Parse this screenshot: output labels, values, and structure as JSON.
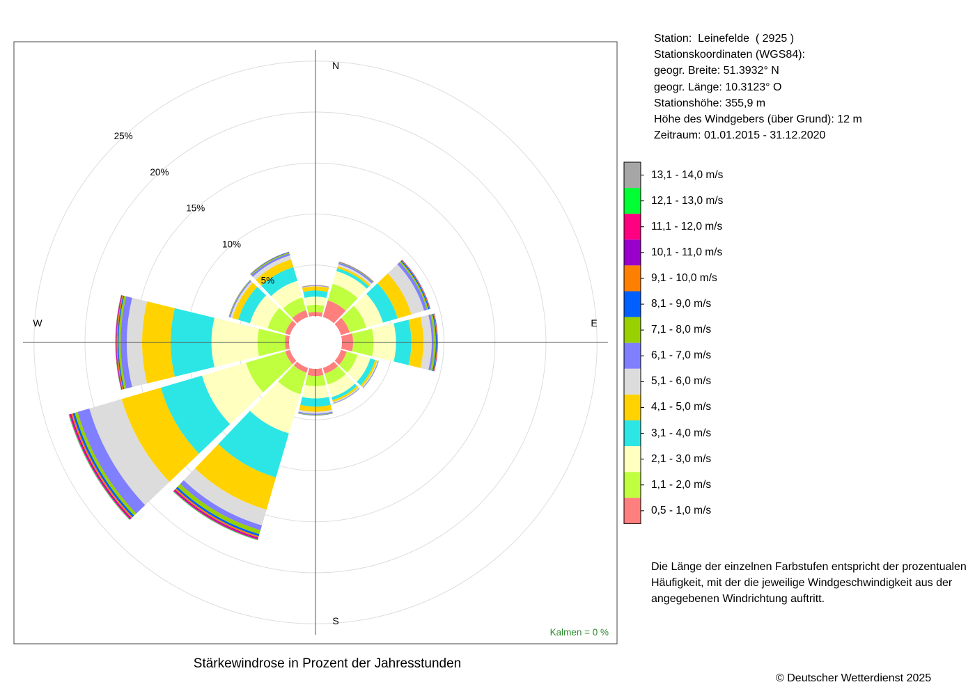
{
  "station_info": {
    "station": "Station:  Leinefelde  ( 2925 )",
    "coords_header": "Stationskoordinaten (WGS84):",
    "lat": "geogr. Breite: 51.3932° N",
    "lon": "geogr. Länge: 10.3123° O",
    "elevation": "Stationshöhe: 355,9 m",
    "sensor_height": "Höhe des Windgebers (über Grund): 12 m",
    "period": "Zeitraum: 01.01.2015 - 31.12.2020"
  },
  "legend_note": "Die Länge der einzelnen Farbstufen entspricht der prozentualen Häufigkeit, mit der die jeweilige Windgeschwindigkeit aus der angegebenen Windrichtung auftritt.",
  "footer_title": "Stärkewindrose in Prozent der Jahresstunden",
  "copyright": "© Deutscher Wetterdienst  2025",
  "chart_data": {
    "type": "polar-stacked-bar",
    "title": "Stärkewindrose in Prozent der Jahresstunden",
    "calm_label": "Kalmen  =  0 %",
    "direction_labels": {
      "N": "N",
      "E": "E",
      "S": "S",
      "W": "W"
    },
    "radial_ticks": [
      {
        "value": 5,
        "label": "5%"
      },
      {
        "value": 10,
        "label": "10%"
      },
      {
        "value": 15,
        "label": "15%"
      },
      {
        "value": 20,
        "label": "20%"
      },
      {
        "value": 25,
        "label": "25%"
      }
    ],
    "grid": true,
    "sector_width_deg": 30,
    "directions_deg": [
      0,
      30,
      60,
      90,
      120,
      150,
      180,
      210,
      240,
      270,
      300,
      330
    ],
    "bins": [
      {
        "label": "0,5 - 1,0 m/s",
        "color": "#ff7f7f"
      },
      {
        "label": "1,1 - 2,0 m/s",
        "color": "#bfff3f"
      },
      {
        "label": "2,1 - 3,0 m/s",
        "color": "#ffffbf"
      },
      {
        "label": "3,1 - 4,0 m/s",
        "color": "#2ce6e6"
      },
      {
        "label": "4,1 - 5,0 m/s",
        "color": "#ffd200"
      },
      {
        "label": "5,1 - 6,0 m/s",
        "color": "#dcdcdc"
      },
      {
        "label": "6,1 - 7,0 m/s",
        "color": "#7f7fff"
      },
      {
        "label": "7,1 - 8,0 m/s",
        "color": "#99d100"
      },
      {
        "label": "8,1 - 9,0 m/s",
        "color": "#0060ff"
      },
      {
        "label": "9,1 - 10,0 m/s",
        "color": "#ff8000"
      },
      {
        "label": "10,1 - 11,0 m/s",
        "color": "#9900cc"
      },
      {
        "label": "11,1 - 12,0 m/s",
        "color": "#ff0080"
      },
      {
        "label": "12,1 - 13,0 m/s",
        "color": "#00ff33"
      },
      {
        "label": "13,1 - 14,0 m/s",
        "color": "#a6a6a6"
      }
    ],
    "series": [
      {
        "direction": 0,
        "values": [
          0.4,
          0.7,
          0.8,
          0.6,
          0.4,
          0.05,
          0.05,
          0.02,
          0.01,
          0.01,
          0,
          0,
          0,
          0
        ]
      },
      {
        "direction": 30,
        "values": [
          1.7,
          1.7,
          1.3,
          0.3,
          0.2,
          0.2,
          0.15,
          0.05,
          0.03,
          0.02,
          0.01,
          0.01,
          0,
          0
        ]
      },
      {
        "direction": 60,
        "values": [
          0.9,
          1.7,
          1.7,
          1.5,
          1.4,
          1.3,
          0.3,
          0.15,
          0.1,
          0.05,
          0.03,
          0.02,
          0.01,
          0
        ]
      },
      {
        "direction": 90,
        "values": [
          1.1,
          2.0,
          2.2,
          1.5,
          1.2,
          0.8,
          0.2,
          0.2,
          0.1,
          0.05,
          0.03,
          0.02,
          0.01,
          0
        ]
      },
      {
        "direction": 120,
        "values": [
          0.6,
          1.1,
          1.3,
          0.5,
          0.2,
          0.1,
          0.05,
          0.02,
          0.01,
          0,
          0,
          0,
          0,
          0
        ]
      },
      {
        "direction": 150,
        "values": [
          0.6,
          1.1,
          1.3,
          0.3,
          0.2,
          0.1,
          0.05,
          0.02,
          0.01,
          0,
          0,
          0,
          0,
          0
        ]
      },
      {
        "direction": 180,
        "values": [
          0.7,
          1.0,
          1.2,
          0.8,
          0.5,
          0.2,
          0.1,
          0.05,
          0.02,
          0.01,
          0,
          0,
          0,
          0
        ]
      },
      {
        "direction": 210,
        "values": [
          0.5,
          2.2,
          4.0,
          4.5,
          3.3,
          1.6,
          0.5,
          0.4,
          0.2,
          0.15,
          0.1,
          0.1,
          0.05,
          0.03
        ]
      },
      {
        "direction": 240,
        "values": [
          0.5,
          4.0,
          4.5,
          4.2,
          4.0,
          3.3,
          1.2,
          0.3,
          0.2,
          0.15,
          0.1,
          0.1,
          0.05,
          0.03
        ]
      },
      {
        "direction": 270,
        "values": [
          0.4,
          2.7,
          4.5,
          4.0,
          2.8,
          1.5,
          0.6,
          0.2,
          0.1,
          0.1,
          0.05,
          0.05,
          0.02,
          0.01
        ]
      },
      {
        "direction": 300,
        "values": [
          0.5,
          1.8,
          1.8,
          1.2,
          0.6,
          0.2,
          0.1,
          0.05,
          0.02,
          0.01,
          0,
          0,
          0,
          0
        ]
      },
      {
        "direction": 330,
        "values": [
          0.7,
          1.3,
          1.7,
          1.4,
          0.8,
          0.4,
          0.2,
          0.1,
          0.05,
          0.02,
          0.01,
          0,
          0,
          0
        ]
      }
    ]
  }
}
